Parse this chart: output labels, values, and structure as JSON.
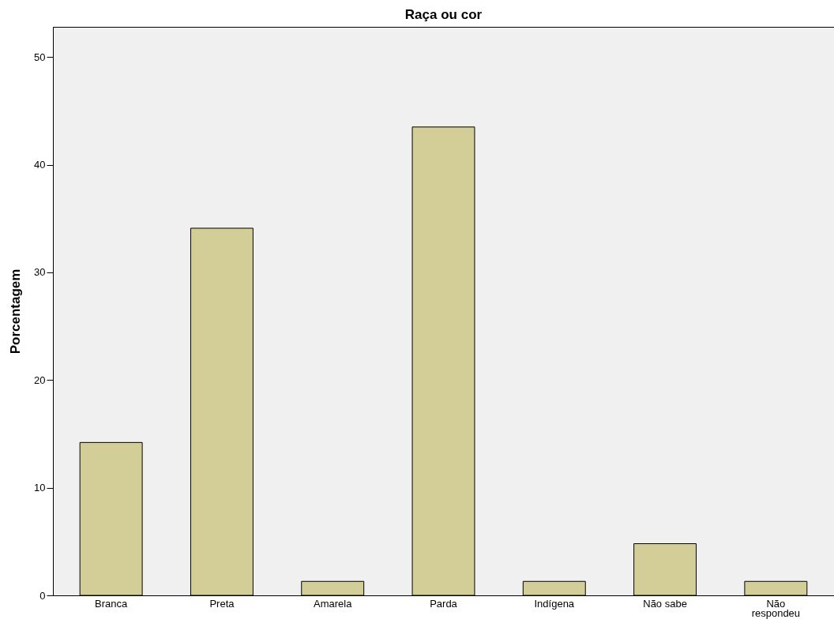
{
  "chart_data": {
    "type": "bar",
    "title": "Raça ou cor",
    "ylabel": "Porcentagem",
    "categories": [
      "Branca",
      "Preta",
      "Amarela",
      "Parda",
      "Indígena",
      "Não sabe",
      "Não respondeu"
    ],
    "values": [
      14.2,
      34.1,
      1.3,
      43.5,
      1.3,
      4.8,
      1.3
    ],
    "color": "#d3ce97",
    "ylim": [
      0,
      52.8
    ],
    "yticks": [
      0,
      10,
      20,
      30,
      40,
      50
    ],
    "grid": false
  }
}
